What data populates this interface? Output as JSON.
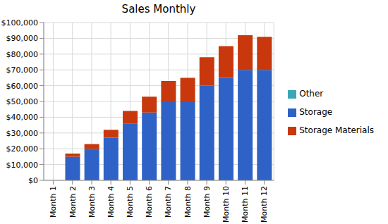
{
  "chart_data": {
    "type": "bar",
    "title": "Sales Monthly",
    "stacked": true,
    "grid": true,
    "legend": "right",
    "categories": [
      "Month 1",
      "Month 2",
      "Month 3",
      "Month 4",
      "Month 5",
      "Month 6",
      "Month 7",
      "Month 8",
      "Month 9",
      "Month 10",
      "Month 11",
      "Month 12"
    ],
    "series": [
      {
        "name": "Storage",
        "color": "#2e62c6",
        "values": [
          0,
          15000,
          20000,
          27000,
          36000,
          43000,
          50000,
          50000,
          60000,
          65000,
          70000,
          70000
        ]
      },
      {
        "name": "Storage Materials",
        "color": "#c8380c",
        "values": [
          0,
          2000,
          3000,
          5000,
          8000,
          10000,
          13000,
          15000,
          18000,
          20000,
          22000,
          21000
        ]
      },
      {
        "name": "Other",
        "color": "#3aa6b8",
        "values": [
          0,
          0,
          0,
          0,
          0,
          0,
          0,
          0,
          0,
          0,
          0,
          0
        ]
      }
    ],
    "ylim": [
      0,
      100000
    ],
    "yticks": [
      {
        "value": 0,
        "label": "$0"
      },
      {
        "value": 10000,
        "label": "$10,000"
      },
      {
        "value": 20000,
        "label": "$20,000"
      },
      {
        "value": 30000,
        "label": "$30,000"
      },
      {
        "value": 40000,
        "label": "$40,000"
      },
      {
        "value": 50000,
        "label": "$50,000"
      },
      {
        "value": 60000,
        "label": "$60,000"
      },
      {
        "value": 70000,
        "label": "$70,000"
      },
      {
        "value": 80000,
        "label": "$80,000"
      },
      {
        "value": 90000,
        "label": "$90,000"
      },
      {
        "value": 100000,
        "label": "$100,000"
      }
    ]
  }
}
